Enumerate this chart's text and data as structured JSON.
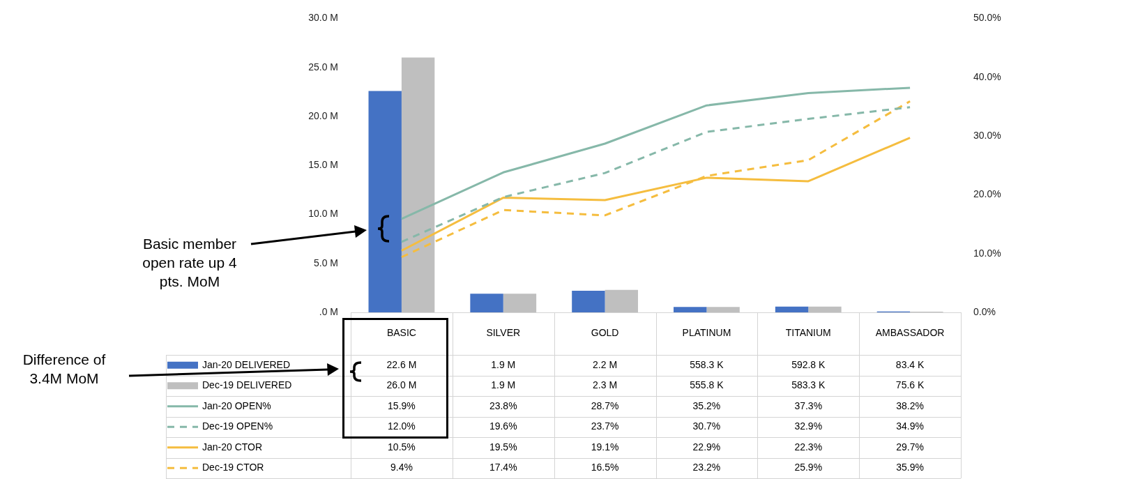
{
  "chart_data": {
    "type": "bar",
    "categories": [
      "BASIC",
      "SILVER",
      "GOLD",
      "PLATINUM",
      "TITANIUM",
      "AMBASSADOR"
    ],
    "series": [
      {
        "name": "Jan-20 DELIVERED",
        "color": "#4472c4",
        "values": [
          22.6,
          1.9,
          2.2,
          0.5583,
          0.5928,
          0.0834
        ],
        "value_labels": [
          "22.6 M",
          "1.9 M",
          "2.2 M",
          "558.3 K",
          "592.8 K",
          "83.4 K"
        ]
      },
      {
        "name": "Dec-19 DELIVERED",
        "color": "#bfbfbf",
        "values": [
          26.0,
          1.9,
          2.3,
          0.5558,
          0.5833,
          0.0756
        ],
        "value_labels": [
          "26.0 M",
          "1.9 M",
          "2.3 M",
          "555.8 K",
          "583.3 K",
          "75.6 K"
        ]
      },
      {
        "name": "Jan-20 OPEN%",
        "type": "line",
        "axis": "y2",
        "color": "#86b8a9",
        "line_style": "solid",
        "values": [
          15.9,
          23.8,
          28.7,
          35.2,
          37.3,
          38.2
        ],
        "value_labels": [
          "15.9%",
          "23.8%",
          "28.7%",
          "35.2%",
          "37.3%",
          "38.2%"
        ]
      },
      {
        "name": "Dec-19 OPEN%",
        "type": "line",
        "axis": "y2",
        "color": "#86b8a9",
        "line_style": "dashed",
        "values": [
          12.0,
          19.6,
          23.7,
          30.7,
          32.9,
          34.9
        ],
        "value_labels": [
          "12.0%",
          "19.6%",
          "23.7%",
          "30.7%",
          "32.9%",
          "34.9%"
        ]
      },
      {
        "name": "Jan-20 CTOR",
        "type": "line",
        "axis": "y2",
        "color": "#f5bd3f",
        "line_style": "solid",
        "values": [
          10.5,
          19.5,
          19.1,
          22.9,
          22.3,
          29.7
        ],
        "value_labels": [
          "10.5%",
          "19.5%",
          "19.1%",
          "22.9%",
          "22.3%",
          "29.7%"
        ]
      },
      {
        "name": "Dec-19 CTOR",
        "type": "line",
        "axis": "y2",
        "color": "#f5bd3f",
        "line_style": "dashed",
        "values": [
          9.4,
          17.4,
          16.5,
          23.2,
          25.9,
          35.9
        ],
        "value_labels": [
          "9.4%",
          "17.4%",
          "16.5%",
          "23.2%",
          "25.9%",
          "35.9%"
        ]
      }
    ],
    "ylim": [
      0,
      30
    ],
    "yticks": [
      {
        "value": 0,
        "label": ".0 M"
      },
      {
        "value": 5,
        "label": "5.0 M"
      },
      {
        "value": 10,
        "label": "10.0 M"
      },
      {
        "value": 15,
        "label": "15.0 M"
      },
      {
        "value": 20,
        "label": "20.0 M"
      },
      {
        "value": 25,
        "label": "25.0 M"
      },
      {
        "value": 30,
        "label": "30.0 M"
      }
    ],
    "y2lim": [
      0,
      50
    ],
    "y2ticks": [
      {
        "value": 0,
        "label": "0.0%"
      },
      {
        "value": 10,
        "label": "10.0%"
      },
      {
        "value": 20,
        "label": "20.0%"
      },
      {
        "value": 30,
        "label": "30.0%"
      },
      {
        "value": 40,
        "label": "40.0%"
      },
      {
        "value": 50,
        "label": "50.0%"
      }
    ],
    "legend": "bottom",
    "annotations": [
      "Basic member open rate up 4 pts. MoM",
      "Difference of 3.4M MoM"
    ]
  }
}
